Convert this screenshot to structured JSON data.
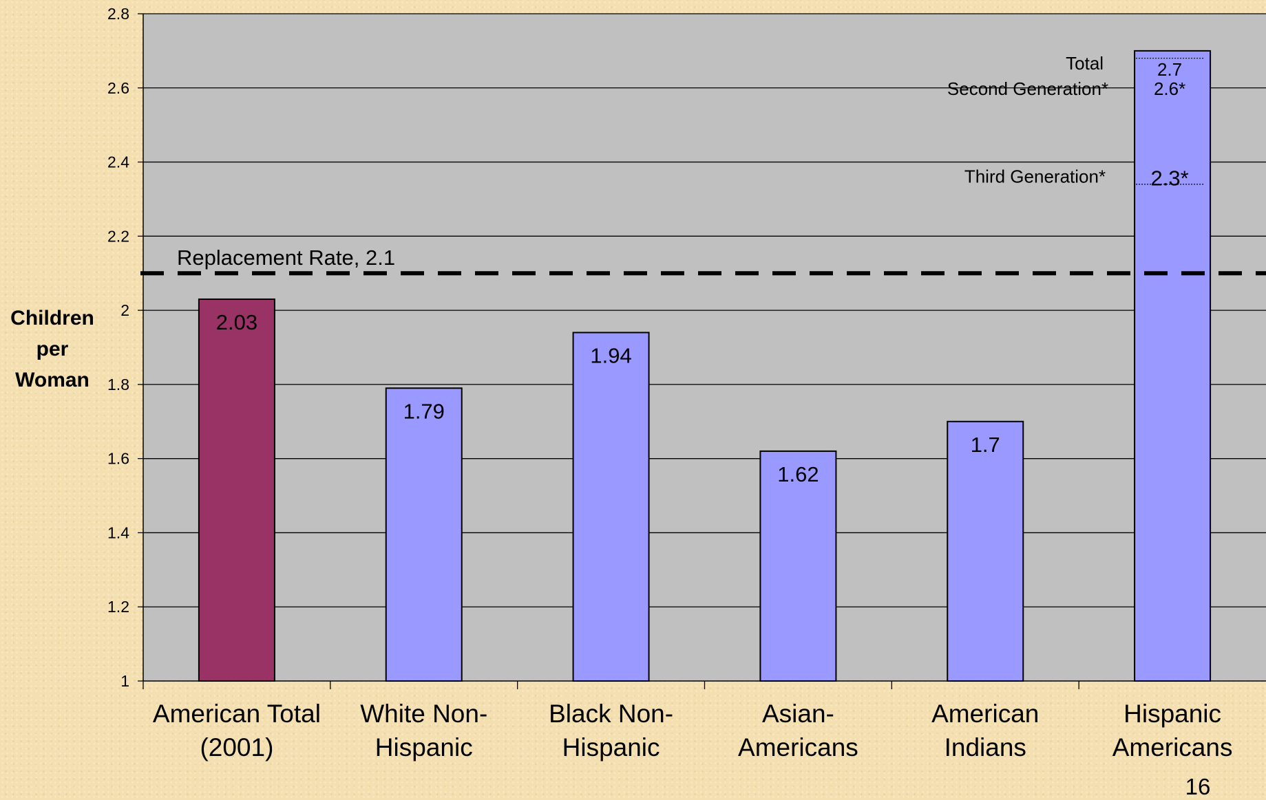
{
  "chart_data": {
    "type": "bar",
    "ylabel": "Children per Woman",
    "ylabel_lines": [
      "Children",
      "per",
      "Woman"
    ],
    "ylim": [
      1,
      2.8
    ],
    "yticks": [
      1,
      1.2,
      1.4,
      1.6,
      1.8,
      2,
      2.2,
      2.4,
      2.6,
      2.8
    ],
    "grid": true,
    "categories": [
      [
        "American Total",
        "(2001)"
      ],
      [
        "White Non-",
        "Hispanic"
      ],
      [
        "Black Non-",
        "Hispanic"
      ],
      [
        "Asian-",
        "Americans"
      ],
      [
        "American",
        "Indians"
      ],
      [
        "Hispanic",
        "Americans"
      ]
    ],
    "values": [
      2.03,
      1.79,
      1.94,
      1.62,
      1.7,
      2.7
    ],
    "value_labels": [
      "2.03",
      "1.79",
      "1.94",
      "1.62",
      "1.7",
      "2.7"
    ],
    "bar_colors": [
      "#993366",
      "#9999ff",
      "#9999ff",
      "#9999ff",
      "#9999ff",
      "#9999ff"
    ],
    "reference_line": {
      "value": 2.1,
      "label": "Replacement  Rate, 2.1"
    },
    "hispanic_breakdown": [
      {
        "label": "Total",
        "value": 2.7,
        "value_label": "2.7"
      },
      {
        "label": "Second Generation*",
        "value": 2.6,
        "value_label": "2.6*"
      },
      {
        "label": "Third Generation*",
        "value": 2.3,
        "value_label": "2.3*"
      }
    ],
    "colors": {
      "plot_bg": "#c0c0c0",
      "grid": "#000000",
      "bar_border": "#000000"
    }
  },
  "page_number": "16"
}
